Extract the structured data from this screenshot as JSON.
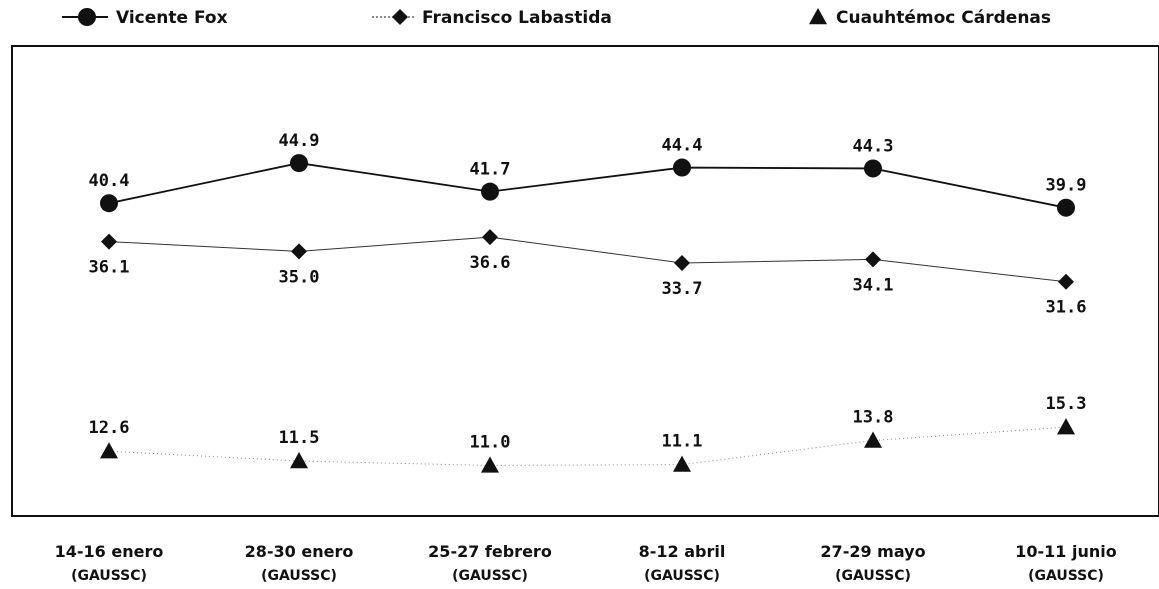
{
  "chart_data": {
    "type": "line",
    "categories": [
      {
        "label": "14-16 enero",
        "sub": "(GAUSSC)"
      },
      {
        "label": "28-30 enero",
        "sub": "(GAUSSC)"
      },
      {
        "label": "25-27 febrero",
        "sub": "(GAUSSC)"
      },
      {
        "label": "8-12 abril",
        "sub": "(GAUSSC)"
      },
      {
        "label": "27-29 mayo",
        "sub": "(GAUSSC)"
      },
      {
        "label": "10-11 junio",
        "sub": "(GAUSSC)"
      }
    ],
    "series": [
      {
        "name": "Vicente Fox",
        "marker": "circle",
        "line_style": "solid",
        "label_position": "above",
        "values": [
          40.4,
          44.9,
          41.7,
          44.4,
          44.3,
          39.9
        ],
        "labels": [
          "40.4",
          "44.9",
          "41.7",
          "44.4",
          "44.3",
          "39.9"
        ]
      },
      {
        "name": "Francisco Labastida",
        "marker": "diamond",
        "line_style": "thin",
        "label_position": "below",
        "values": [
          36.1,
          35.0,
          36.6,
          33.7,
          34.1,
          31.6
        ],
        "labels": [
          "36.1",
          "35.0",
          "36.6",
          "33.7",
          "34.1",
          "31.6"
        ]
      },
      {
        "name": "Cuauhtémoc Cárdenas",
        "marker": "triangle",
        "line_style": "dotted",
        "label_position": "above",
        "values": [
          12.6,
          11.5,
          11.0,
          11.1,
          13.8,
          15.3
        ],
        "labels": [
          "12.6",
          "11.5",
          "11.0",
          "11.1",
          "13.8",
          "15.3"
        ]
      }
    ],
    "legend_position": "top",
    "grid": false,
    "colors": {
      "line": "#111111",
      "dotted_line": "#888888"
    }
  }
}
